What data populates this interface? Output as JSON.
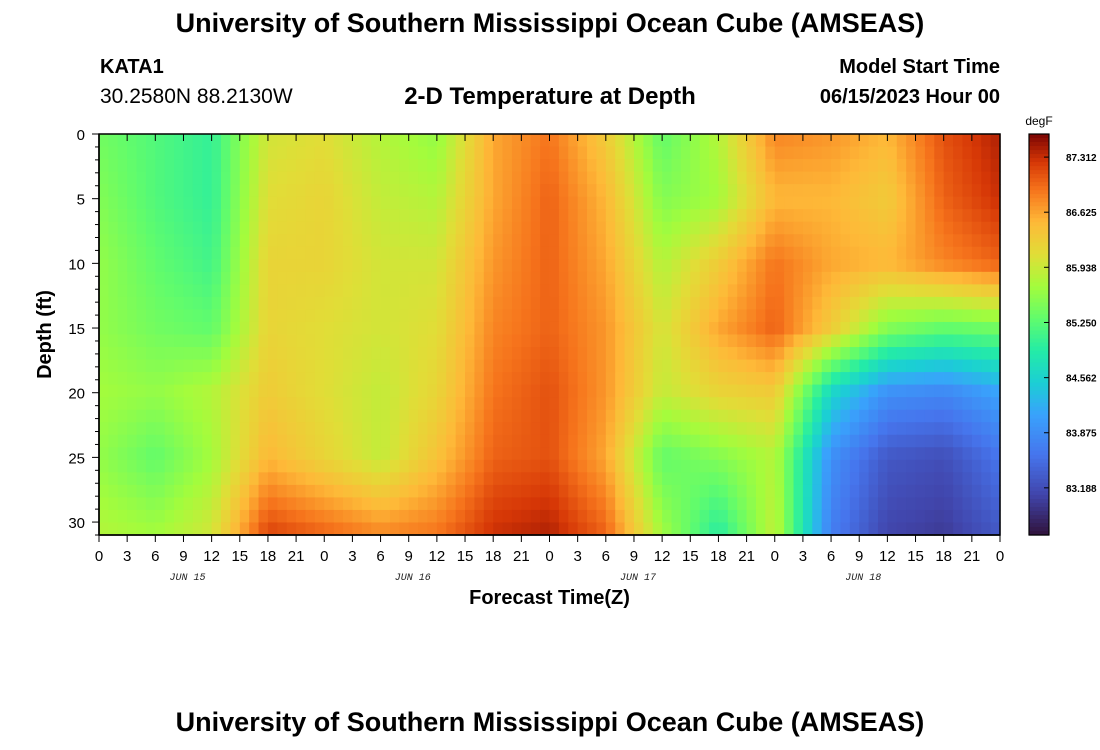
{
  "page": {
    "title": "University of Southern Mississippi Ocean Cube (AMSEAS)",
    "bottom_title": "University of Southern Mississippi Ocean Cube (AMSEAS)",
    "station": "KATA1",
    "coords": "30.2580N  88.2130W",
    "model_start_label": "Model Start Time",
    "model_start_value": "06/15/2023 Hour 00"
  },
  "chart_data": {
    "type": "heatmap",
    "title": "2-D Temperature at Depth",
    "xlabel": "Forecast Time(Z)",
    "ylabel": "Depth (ft)",
    "x_range_hours": [
      0,
      96
    ],
    "x_tick_labels": [
      "0",
      "3",
      "6",
      "9",
      "12",
      "15",
      "18",
      "21",
      "0",
      "3",
      "6",
      "9",
      "12",
      "15",
      "18",
      "21",
      "0",
      "3",
      "6",
      "9",
      "12",
      "15",
      "18",
      "21",
      "0",
      "3",
      "6",
      "9",
      "12",
      "15",
      "18",
      "21",
      "0"
    ],
    "day_labels": [
      "JUN 15",
      "JUN 16",
      "JUN 17",
      "JUN 18"
    ],
    "ylim": [
      0,
      31
    ],
    "y_ticks": [
      0,
      5,
      10,
      15,
      20,
      25,
      30
    ],
    "colorbar": {
      "unit": "degF",
      "range": [
        82.6,
        87.6
      ],
      "ticks": [
        "87.312",
        "86.625",
        "85.938",
        "85.250",
        "84.562",
        "83.875",
        "83.188"
      ],
      "tick_values": [
        87.312,
        86.625,
        85.938,
        85.25,
        84.562,
        83.875,
        83.188
      ]
    },
    "depths_ft": [
      0,
      5,
      10,
      15,
      20,
      25,
      31
    ],
    "times_hours": [
      0,
      6,
      12,
      18,
      24,
      30,
      36,
      42,
      48,
      54,
      60,
      66,
      72,
      78,
      84,
      90,
      96
    ],
    "values_degF": [
      [
        85.4,
        85.2,
        85.0,
        86.0,
        86.1,
        85.8,
        85.6,
        86.6,
        86.9,
        86.3,
        85.3,
        85.8,
        86.8,
        86.7,
        86.5,
        87.1,
        87.4
      ],
      [
        85.5,
        85.2,
        85.0,
        86.1,
        86.2,
        85.9,
        85.8,
        86.6,
        87.0,
        86.5,
        85.5,
        85.7,
        86.5,
        86.5,
        86.3,
        87.0,
        87.3
      ],
      [
        85.6,
        85.3,
        85.1,
        86.2,
        86.2,
        86.0,
        86.0,
        86.7,
        87.0,
        86.6,
        85.8,
        86.3,
        86.9,
        86.6,
        86.5,
        86.8,
        87.0
      ],
      [
        85.6,
        85.4,
        85.3,
        86.2,
        86.1,
        86.0,
        86.1,
        86.8,
        87.0,
        86.7,
        86.0,
        86.6,
        87.0,
        86.3,
        85.5,
        85.3,
        85.4
      ],
      [
        85.7,
        85.6,
        85.8,
        86.3,
        86.1,
        85.9,
        86.2,
        86.9,
        87.1,
        86.7,
        85.9,
        86.2,
        86.3,
        84.6,
        83.9,
        83.8,
        84.1
      ],
      [
        85.6,
        85.3,
        85.7,
        86.5,
        86.2,
        85.9,
        86.4,
        87.0,
        87.1,
        86.6,
        85.3,
        85.5,
        85.8,
        83.9,
        83.3,
        83.2,
        83.6
      ],
      [
        85.8,
        85.7,
        86.0,
        87.2,
        87.0,
        86.8,
        86.9,
        87.3,
        87.4,
        87.0,
        85.7,
        84.9,
        85.9,
        83.7,
        83.1,
        83.0,
        83.3
      ]
    ]
  }
}
